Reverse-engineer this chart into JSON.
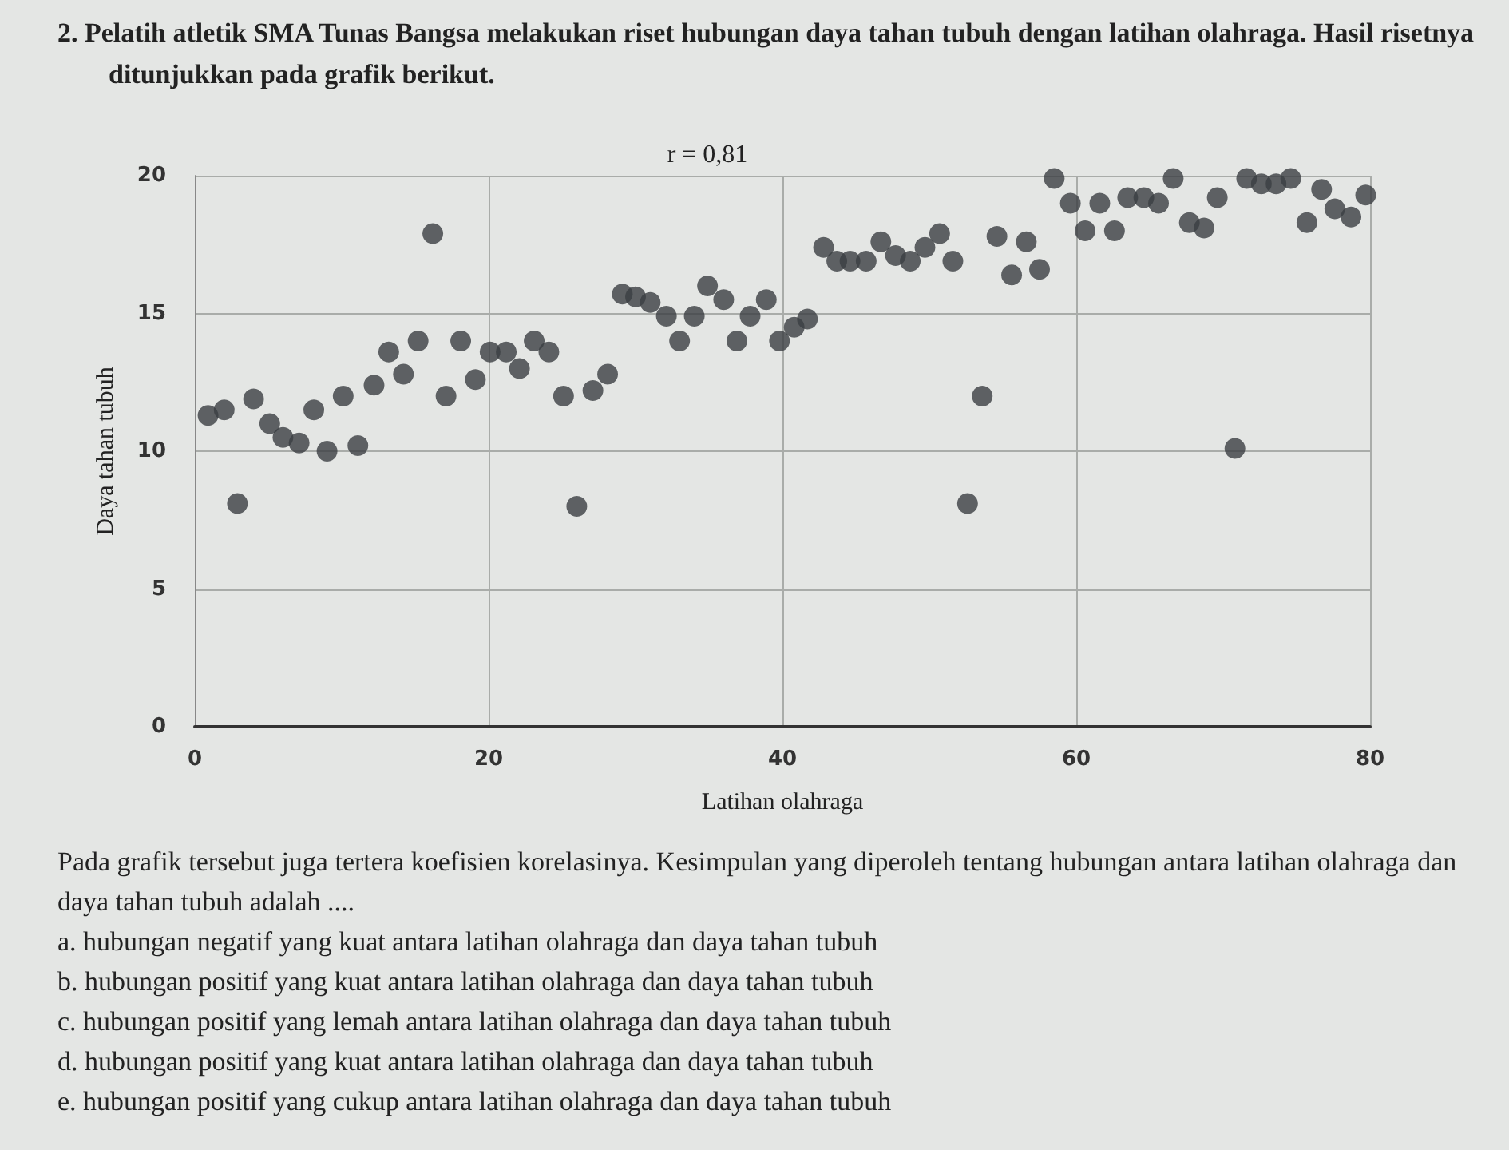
{
  "chart_data": {
    "type": "scatter",
    "title": "2. Pelatih atletik SMA Tunas Bangsa melakukan riset hubungan daya tahan tubuh dengan latihan olahraga. Hasil risetnya ditunjukkan pada grafik berikut.",
    "subtitle": "r = 0,81",
    "xlabel": "Latihan olahraga",
    "ylabel": "Daya tahan tubuh",
    "x": [
      0.9,
      2,
      2.9,
      4,
      5.1,
      6,
      7.1,
      8.1,
      9,
      10.1,
      11.1,
      12.2,
      13.2,
      14.2,
      15.2,
      16.2,
      17.1,
      18.1,
      19.1,
      20.1,
      21.2,
      22.1,
      23.1,
      24.1,
      25.1,
      26,
      27.1,
      28.1,
      29.1,
      30,
      31,
      32.1,
      33,
      34,
      34.9,
      36,
      36.9,
      37.8,
      38.9,
      39.8,
      40.8,
      41.7,
      42.8,
      43.7,
      44.6,
      45.7,
      46.7,
      47.7,
      48.7,
      49.7,
      50.7,
      51.6,
      52.6,
      53.6,
      54.6,
      55.6,
      56.6,
      57.5,
      58.5,
      59.6,
      60.6,
      61.6,
      62.6,
      63.5,
      64.6,
      65.6,
      66.6,
      67.7,
      68.7,
      69.6,
      70.8,
      71.6,
      72.6,
      73.6,
      74.6,
      75.7,
      76.7,
      77.6,
      78.7,
      79.7
    ],
    "values": [
      11.3,
      11.5,
      8.1,
      11.9,
      11,
      10.5,
      10.3,
      11.5,
      10,
      12,
      10.2,
      12.4,
      13.6,
      12.8,
      14,
      17.9,
      12,
      14,
      12.6,
      13.6,
      13.6,
      13,
      14,
      13.6,
      12,
      8,
      12.2,
      12.8,
      15.7,
      15.6,
      15.4,
      14.9,
      14,
      14.9,
      16,
      15.5,
      14,
      14.9,
      15.5,
      14,
      14.5,
      14.8,
      17.4,
      16.9,
      16.9,
      16.9,
      17.6,
      17.1,
      16.9,
      17.4,
      17.9,
      16.9,
      8.1,
      12,
      17.8,
      16.4,
      17.6,
      16.6,
      19.9,
      19,
      18,
      19,
      18,
      19.2,
      19.2,
      19,
      19.9,
      18.3,
      18.1,
      19.2,
      10.1,
      19.9,
      19.7,
      19.7,
      19.9,
      18.3,
      19.5,
      18.8,
      18.5,
      19.3
    ],
    "color": "#3b3e42",
    "marker": "circle",
    "xlim": [
      0,
      80
    ],
    "xticks": [
      0,
      20,
      40,
      60,
      80
    ],
    "ylim": [
      0,
      20
    ],
    "yticks": [
      0,
      5,
      10,
      15,
      20
    ],
    "grid": true,
    "annotations": [
      "Pada grafik tersebut juga tertera koefisien korelasinya. Kesimpulan yang diperoleh tentang hubungan antara latihan olahraga dan daya tahan tubuh adalah ....",
      "a. hubungan negatif yang kuat antara latihan olahraga dan daya tahan tubuh",
      "b. hubungan positif yang kuat antara latihan olahraga dan daya tahan tubuh",
      "c. hubungan positif yang lemah antara latihan olahraga dan daya tahan tubuh",
      "d. hubungan positif yang kuat antara latihan olahraga dan daya tahan tubuh",
      "e. hubungan positif yang cukup antara latihan olahraga dan daya tahan tubuh"
    ]
  }
}
